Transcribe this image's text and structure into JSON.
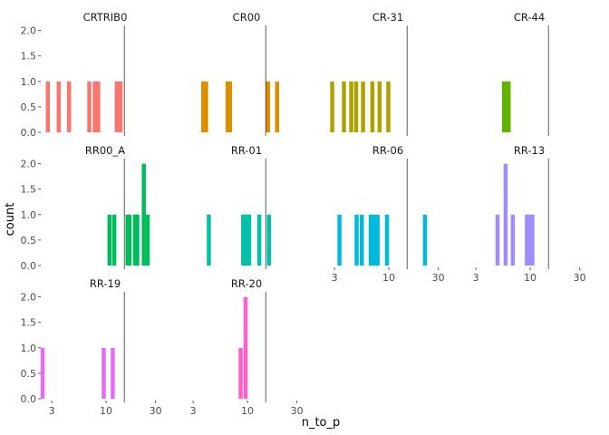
{
  "chart_data": {
    "type": "bar",
    "xlabel": "n_to_p",
    "ylabel": "count",
    "x_scale": "log10",
    "x_ticks": [
      3,
      10,
      30
    ],
    "xlim": [
      2.4,
      40
    ],
    "y_ticks": [
      0.0,
      0.5,
      1.0,
      1.5,
      2.0
    ],
    "y_tick_labels": [
      "0.0",
      "0.5",
      "1.0",
      "1.5",
      "2.0"
    ],
    "ylim": [
      0,
      2.1
    ],
    "reference_line_x": 15,
    "legend": "none",
    "grid": false,
    "facets": [
      {
        "label": "CRTRIB0",
        "color": "#F8766D",
        "bars": [
          [
            2.75,
            1
          ],
          [
            3.5,
            1
          ],
          [
            4.4,
            1
          ],
          [
            6.9,
            1
          ],
          [
            7.8,
            1
          ],
          [
            8.4,
            1
          ],
          [
            12.7,
            1
          ],
          [
            13.8,
            1
          ]
        ]
      },
      {
        "label": "CR00",
        "color": "#DB8E00",
        "bars": [
          [
            3.75,
            1
          ],
          [
            4.0,
            1
          ],
          [
            6.45,
            1
          ],
          [
            6.8,
            1
          ],
          [
            15.8,
            1
          ],
          [
            19.3,
            1
          ]
        ]
      },
      {
        "label": "CR-31",
        "color": "#AEA200",
        "bars": [
          [
            2.85,
            1
          ],
          [
            3.7,
            1
          ],
          [
            4.35,
            1
          ],
          [
            4.85,
            1
          ],
          [
            5.65,
            1
          ],
          [
            6.95,
            1
          ],
          [
            8.15,
            1
          ],
          [
            9.9,
            1
          ]
        ]
      },
      {
        "label": "CR-44",
        "color": "#64B200",
        "bars": [
          [
            5.6,
            1
          ],
          [
            5.9,
            1
          ],
          [
            6.2,
            1
          ]
        ]
      },
      {
        "label": "RR00_A",
        "color": "#00BD5C",
        "bars": [
          [
            10.8,
            1
          ],
          [
            12.0,
            1
          ],
          [
            16.1,
            1
          ],
          [
            16.8,
            1
          ],
          [
            19.0,
            1
          ],
          [
            20.0,
            1
          ],
          [
            23.1,
            2
          ],
          [
            25.2,
            1
          ]
        ]
      },
      {
        "label": "RR-01",
        "color": "#00C1A7",
        "bars": [
          [
            4.25,
            1
          ],
          [
            9.1,
            1
          ],
          [
            9.5,
            1
          ],
          [
            10.0,
            1
          ],
          [
            10.4,
            1
          ],
          [
            13.0,
            1
          ],
          [
            16.1,
            1
          ]
        ]
      },
      {
        "label": "RR-06",
        "color": "#00BADE",
        "bars": [
          [
            3.35,
            1
          ],
          [
            4.9,
            1
          ],
          [
            5.5,
            1
          ],
          [
            6.7,
            1
          ],
          [
            7.2,
            1
          ],
          [
            7.8,
            1
          ],
          [
            9.6,
            1
          ],
          [
            22.3,
            1
          ]
        ]
      },
      {
        "label": "RR-13",
        "color": "#9F8CFF",
        "bars": [
          [
            4.85,
            1
          ],
          [
            5.8,
            2
          ],
          [
            6.8,
            1
          ],
          [
            9.3,
            1
          ],
          [
            9.9,
            1
          ],
          [
            10.5,
            1
          ]
        ]
      },
      {
        "label": "RR-19",
        "color": "#E46CF6",
        "bars": [
          [
            2.45,
            1
          ],
          [
            9.5,
            1
          ],
          [
            11.6,
            1
          ]
        ]
      },
      {
        "label": "RR-20",
        "color": "#FF61C9",
        "bars": [
          [
            8.6,
            1
          ],
          [
            9.6,
            2
          ]
        ]
      }
    ]
  }
}
